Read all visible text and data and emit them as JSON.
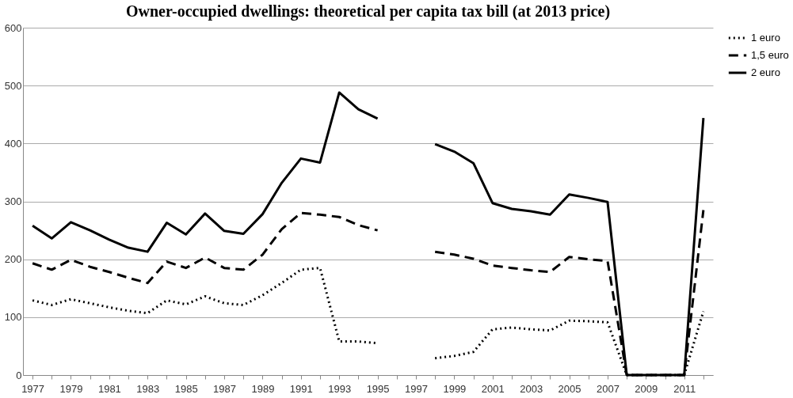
{
  "chart_data": {
    "type": "line",
    "title": "Owner-occupied dwellings: theoretical per capita tax bill (at 2013 price)",
    "categories": [
      "1977",
      null,
      "1979",
      null,
      "1981",
      null,
      "1983",
      null,
      "1985",
      null,
      "1987",
      null,
      "1989",
      null,
      "1991",
      null,
      "1993",
      null,
      "1995",
      null,
      "1997",
      null,
      "1999",
      null,
      "2001",
      null,
      "2003",
      null,
      "2005",
      null,
      "2007",
      null,
      "2009",
      null,
      "2011",
      null
    ],
    "series": [
      {
        "name": "1 euro",
        "color": "#000000",
        "line_style": "dotted",
        "values": [
          129,
          121,
          131,
          124,
          117,
          111,
          107,
          129,
          122,
          136,
          124,
          121,
          138,
          159,
          182,
          185,
          58,
          58,
          55,
          null,
          null,
          29,
          33,
          40,
          79,
          82,
          79,
          77,
          94,
          93,
          91,
          0,
          0,
          0,
          0,
          110
        ]
      },
      {
        "name": "1,5 euro",
        "color": "#000000",
        "line_style": "dashed",
        "values": [
          193,
          182,
          199,
          187,
          178,
          168,
          159,
          196,
          185,
          203,
          185,
          182,
          208,
          252,
          280,
          277,
          273,
          259,
          250,
          null,
          null,
          213,
          208,
          201,
          189,
          185,
          181,
          178,
          204,
          200,
          197,
          0,
          0,
          0,
          0,
          285
        ]
      },
      {
        "name": "2 euro",
        "color": "#000000",
        "line_style": "solid",
        "values": [
          258,
          236,
          264,
          250,
          234,
          220,
          213,
          263,
          243,
          279,
          249,
          244,
          278,
          332,
          374,
          367,
          488,
          459,
          443,
          null,
          null,
          399,
          386,
          366,
          297,
          287,
          283,
          277,
          312,
          306,
          299,
          0,
          0,
          0,
          0,
          444
        ]
      }
    ],
    "ylim": [
      0,
      600
    ],
    "yticks": [
      0,
      100,
      200,
      300,
      400,
      500,
      600
    ],
    "grid": "y",
    "legend": "right",
    "marker": "none"
  }
}
